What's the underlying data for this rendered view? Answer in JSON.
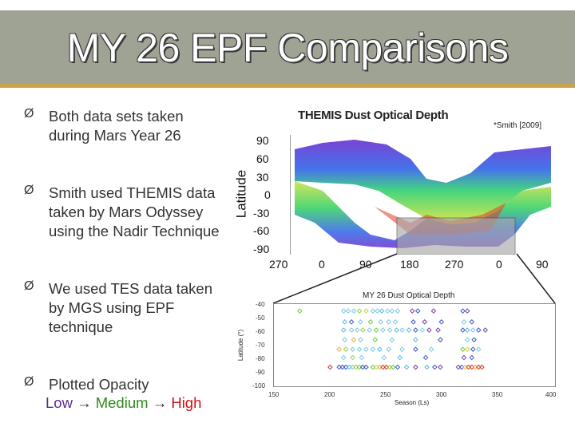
{
  "slide": {
    "title": "MY 26 EPF Comparisons",
    "bullets": [
      {
        "text": "Both data sets taken during Mars Year 26"
      },
      {
        "text": "Smith used THEMIS data taken by Mars Odyssey using the Nadir Technique"
      },
      {
        "text": "We used TES data taken by MGS using EPF technique"
      },
      {
        "text": "Plotted Opacity"
      }
    ],
    "opacity_scale": {
      "low": "Low",
      "medium": "Medium",
      "high": "High"
    },
    "bullet_arrow": "Ø",
    "scale_arrow": "→",
    "colors": {
      "title_bar": "#9fa394",
      "accent": "#c9a24b",
      "low": "#5b2d8e",
      "medium": "#2e8b1a",
      "high": "#d11010"
    }
  },
  "figure_top": {
    "title": "THEMIS Dust Optical Depth",
    "citation": "*Smith [2009]",
    "ylabel": "Latitude",
    "yticks": [
      "90",
      "60",
      "30",
      "0",
      "-30",
      "-60",
      "-90"
    ],
    "xticks": [
      "270",
      "0",
      "90",
      "180",
      "270",
      "0",
      "90"
    ]
  },
  "chart_data": {
    "type": "scatter",
    "title": "MY 26 Dust Optical Depth",
    "xlabel": "Season (Ls)",
    "ylabel": "Latitude (°)",
    "xlim": [
      150,
      400
    ],
    "ylim": [
      -100,
      -40
    ],
    "xticks": [
      "150",
      "200",
      "250",
      "300",
      "350",
      "400"
    ],
    "yticks": [
      "-40",
      "-50",
      "-60",
      "-70",
      "-80",
      "-90",
      "-100"
    ],
    "points": [
      {
        "x": 173,
        "y": -45,
        "c": "#6acd3c"
      },
      {
        "x": 212,
        "y": -45,
        "c": "#77c9e6"
      },
      {
        "x": 216,
        "y": -45,
        "c": "#77c9e6"
      },
      {
        "x": 221,
        "y": -45,
        "c": "#77c9e6"
      },
      {
        "x": 226,
        "y": -45,
        "c": "#9ad23a"
      },
      {
        "x": 232,
        "y": -45,
        "c": "#c9d83b"
      },
      {
        "x": 238,
        "y": -45,
        "c": "#77c9e6"
      },
      {
        "x": 242,
        "y": -45,
        "c": "#77c9e6"
      },
      {
        "x": 246,
        "y": -45,
        "c": "#5fb8e3"
      },
      {
        "x": 251,
        "y": -45,
        "c": "#77c9e6"
      },
      {
        "x": 255,
        "y": -45,
        "c": "#77c9e6"
      },
      {
        "x": 260,
        "y": -45,
        "c": "#77c9e6"
      },
      {
        "x": 273,
        "y": -45,
        "c": "#7b3fa8"
      },
      {
        "x": 278,
        "y": -45,
        "c": "#3e57c4"
      },
      {
        "x": 292,
        "y": -45,
        "c": "#7b3fa8"
      },
      {
        "x": 318,
        "y": -45,
        "c": "#3e57c4"
      },
      {
        "x": 322,
        "y": -45,
        "c": "#7b3fa8"
      },
      {
        "x": 213,
        "y": -53,
        "c": "#5fb8e3"
      },
      {
        "x": 219,
        "y": -53,
        "c": "#3e57c4"
      },
      {
        "x": 227,
        "y": -53,
        "c": "#77c9e6"
      },
      {
        "x": 236,
        "y": -53,
        "c": "#6acd3c"
      },
      {
        "x": 245,
        "y": -53,
        "c": "#77c9e6"
      },
      {
        "x": 252,
        "y": -53,
        "c": "#77c9e6"
      },
      {
        "x": 258,
        "y": -53,
        "c": "#77c9e6"
      },
      {
        "x": 274,
        "y": -53,
        "c": "#3e57c4"
      },
      {
        "x": 284,
        "y": -53,
        "c": "#7b3fa8"
      },
      {
        "x": 299,
        "y": -53,
        "c": "#3e57c4"
      },
      {
        "x": 319,
        "y": -53,
        "c": "#77c9e6"
      },
      {
        "x": 326,
        "y": -53,
        "c": "#3e57c4"
      },
      {
        "x": 212,
        "y": -59,
        "c": "#5fb8e3"
      },
      {
        "x": 219,
        "y": -59,
        "c": "#77c9e6"
      },
      {
        "x": 224,
        "y": -59,
        "c": "#77c9e6"
      },
      {
        "x": 229,
        "y": -59,
        "c": "#9ad23a"
      },
      {
        "x": 235,
        "y": -59,
        "c": "#77c9e6"
      },
      {
        "x": 241,
        "y": -59,
        "c": "#6acd3c"
      },
      {
        "x": 247,
        "y": -59,
        "c": "#77c9e6"
      },
      {
        "x": 253,
        "y": -59,
        "c": "#77c9e6"
      },
      {
        "x": 259,
        "y": -59,
        "c": "#5fb8e3"
      },
      {
        "x": 264,
        "y": -59,
        "c": "#77c9e6"
      },
      {
        "x": 270,
        "y": -59,
        "c": "#5fb8e3"
      },
      {
        "x": 276,
        "y": -59,
        "c": "#3e57c4"
      },
      {
        "x": 282,
        "y": -59,
        "c": "#77c9e6"
      },
      {
        "x": 288,
        "y": -59,
        "c": "#7b3fa8"
      },
      {
        "x": 296,
        "y": -59,
        "c": "#7b3fa8"
      },
      {
        "x": 318,
        "y": -59,
        "c": "#3e57c4"
      },
      {
        "x": 322,
        "y": -59,
        "c": "#5fb8e3"
      },
      {
        "x": 327,
        "y": -59,
        "c": "#77c9e6"
      },
      {
        "x": 332,
        "y": -59,
        "c": "#3e57c4"
      },
      {
        "x": 338,
        "y": -59,
        "c": "#7b3fa8"
      },
      {
        "x": 213,
        "y": -66,
        "c": "#77c9e6"
      },
      {
        "x": 221,
        "y": -66,
        "c": "#e8b14a"
      },
      {
        "x": 227,
        "y": -66,
        "c": "#77c9e6"
      },
      {
        "x": 240,
        "y": -66,
        "c": "#6acd3c"
      },
      {
        "x": 255,
        "y": -66,
        "c": "#77c9e6"
      },
      {
        "x": 276,
        "y": -66,
        "c": "#5fb8e3"
      },
      {
        "x": 298,
        "y": -66,
        "c": "#3e57c4"
      },
      {
        "x": 322,
        "y": -66,
        "c": "#77c9e6"
      },
      {
        "x": 328,
        "y": -66,
        "c": "#3e57c4"
      },
      {
        "x": 208,
        "y": -73,
        "c": "#e8b14a"
      },
      {
        "x": 214,
        "y": -73,
        "c": "#9ad23a"
      },
      {
        "x": 220,
        "y": -73,
        "c": "#77c9e6"
      },
      {
        "x": 226,
        "y": -73,
        "c": "#77c9e6"
      },
      {
        "x": 232,
        "y": -73,
        "c": "#77c9e6"
      },
      {
        "x": 238,
        "y": -73,
        "c": "#77c9e6"
      },
      {
        "x": 244,
        "y": -73,
        "c": "#5fb8e3"
      },
      {
        "x": 252,
        "y": -73,
        "c": "#77c9e6"
      },
      {
        "x": 264,
        "y": -73,
        "c": "#77c9e6"
      },
      {
        "x": 276,
        "y": -73,
        "c": "#3e57c4"
      },
      {
        "x": 290,
        "y": -73,
        "c": "#77c9e6"
      },
      {
        "x": 318,
        "y": -73,
        "c": "#6acd3c"
      },
      {
        "x": 322,
        "y": -73,
        "c": "#c9d83b"
      },
      {
        "x": 327,
        "y": -73,
        "c": "#3e57c4"
      },
      {
        "x": 332,
        "y": -73,
        "c": "#77c9e6"
      },
      {
        "x": 212,
        "y": -79,
        "c": "#77c9e6"
      },
      {
        "x": 220,
        "y": -79,
        "c": "#9ad23a"
      },
      {
        "x": 228,
        "y": -79,
        "c": "#77c9e6"
      },
      {
        "x": 248,
        "y": -79,
        "c": "#77c9e6"
      },
      {
        "x": 262,
        "y": -79,
        "c": "#5fb8e3"
      },
      {
        "x": 285,
        "y": -79,
        "c": "#3e57c4"
      },
      {
        "x": 319,
        "y": -79,
        "c": "#7b3fa8"
      },
      {
        "x": 326,
        "y": -79,
        "c": "#3e57c4"
      },
      {
        "x": 200,
        "y": -86,
        "c": "#d83a2a"
      },
      {
        "x": 208,
        "y": -86,
        "c": "#3e57c4"
      },
      {
        "x": 211,
        "y": -86,
        "c": "#3e57c4"
      },
      {
        "x": 214,
        "y": -86,
        "c": "#3e57c4"
      },
      {
        "x": 217,
        "y": -86,
        "c": "#5fb8e3"
      },
      {
        "x": 220,
        "y": -86,
        "c": "#77c9e6"
      },
      {
        "x": 223,
        "y": -86,
        "c": "#9ad23a"
      },
      {
        "x": 226,
        "y": -86,
        "c": "#6acd3c"
      },
      {
        "x": 229,
        "y": -86,
        "c": "#3e57c4"
      },
      {
        "x": 232,
        "y": -86,
        "c": "#3e57c4"
      },
      {
        "x": 238,
        "y": -86,
        "c": "#6acd3c"
      },
      {
        "x": 241,
        "y": -86,
        "c": "#c9d83b"
      },
      {
        "x": 244,
        "y": -86,
        "c": "#e8b14a"
      },
      {
        "x": 247,
        "y": -86,
        "c": "#d83a2a"
      },
      {
        "x": 250,
        "y": -86,
        "c": "#d83a2a"
      },
      {
        "x": 253,
        "y": -86,
        "c": "#9ad23a"
      },
      {
        "x": 256,
        "y": -86,
        "c": "#6acd3c"
      },
      {
        "x": 260,
        "y": -86,
        "c": "#3e57c4"
      },
      {
        "x": 268,
        "y": -86,
        "c": "#5fb8e3"
      },
      {
        "x": 276,
        "y": -86,
        "c": "#7b3fa8"
      },
      {
        "x": 286,
        "y": -86,
        "c": "#5fb8e3"
      },
      {
        "x": 293,
        "y": -86,
        "c": "#3e57c4"
      },
      {
        "x": 298,
        "y": -86,
        "c": "#7b3fa8"
      },
      {
        "x": 314,
        "y": -86,
        "c": "#7b3fa8"
      },
      {
        "x": 317,
        "y": -86,
        "c": "#3e57c4"
      },
      {
        "x": 320,
        "y": -86,
        "c": "#c9d83b"
      },
      {
        "x": 323,
        "y": -86,
        "c": "#d83a2a"
      },
      {
        "x": 326,
        "y": -86,
        "c": "#d83a2a"
      },
      {
        "x": 329,
        "y": -86,
        "c": "#e8b14a"
      },
      {
        "x": 332,
        "y": -86,
        "c": "#d83a2a"
      },
      {
        "x": 335,
        "y": -86,
        "c": "#d83a2a"
      }
    ]
  }
}
